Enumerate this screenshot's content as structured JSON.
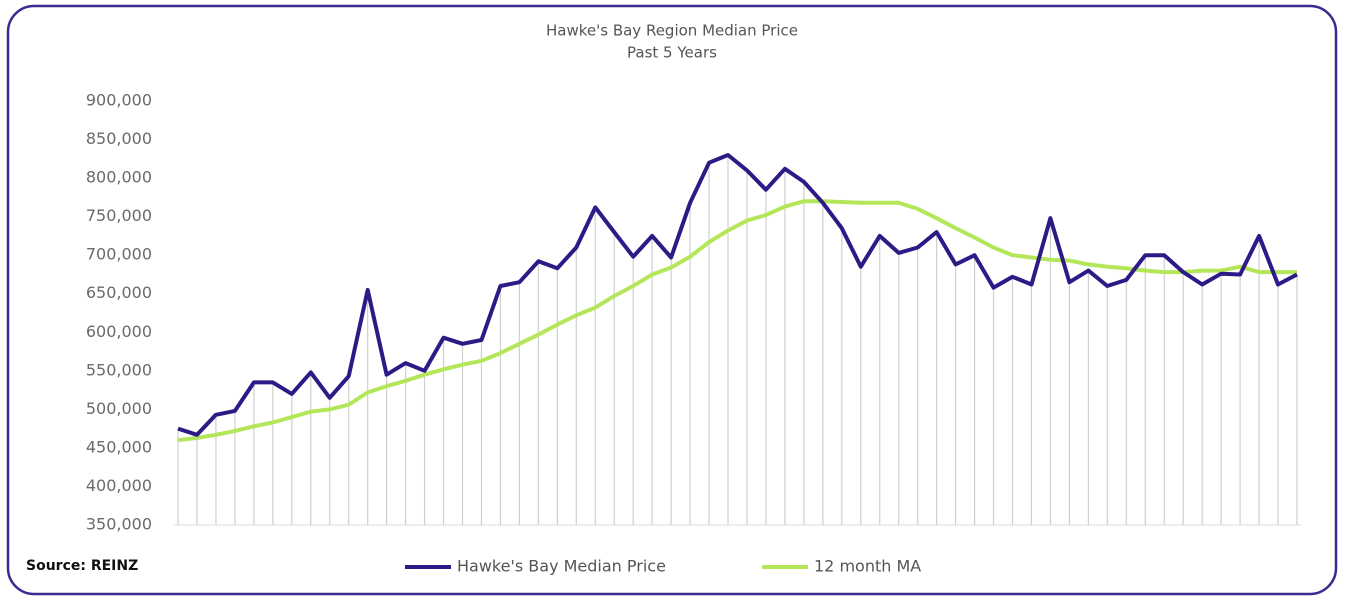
{
  "chart_data": {
    "type": "line",
    "title": "Hawke's Bay Region Median Price",
    "subtitle": "Past 5 Years",
    "source": "Source: REINZ",
    "categories": [
      null,
      null,
      null,
      null,
      null,
      null,
      null,
      null,
      null,
      null,
      null,
      null,
      null,
      null,
      null,
      null,
      null,
      null,
      null,
      null,
      null,
      null,
      null,
      null,
      null,
      null,
      null,
      null,
      null,
      null,
      null,
      null,
      null,
      null,
      null,
      null,
      null,
      null,
      null,
      null,
      null,
      null,
      null,
      null,
      null,
      null,
      null,
      null,
      null,
      null,
      null,
      null,
      null,
      null,
      null,
      null,
      null,
      null,
      null,
      null
    ],
    "series": [
      {
        "name": "Hawke's Bay Median Price",
        "color": "#2e1a87",
        "values": [
          475000,
          467000,
          493000,
          498000,
          535000,
          535000,
          520000,
          548000,
          515000,
          543000,
          655000,
          545000,
          560000,
          550000,
          593000,
          585000,
          590000,
          660000,
          665000,
          692000,
          683000,
          710000,
          762000,
          730000,
          698000,
          725000,
          697000,
          768000,
          820000,
          830000,
          810000,
          785000,
          812000,
          795000,
          768000,
          735000,
          685000,
          725000,
          703000,
          710000,
          730000,
          688000,
          700000,
          658000,
          672000,
          662000,
          748000,
          665000,
          680000,
          660000,
          668000,
          700000,
          700000,
          678000,
          662000,
          676000,
          675000,
          725000,
          662000,
          675000
        ]
      },
      {
        "name": "12 month MA",
        "color": "#b4e65a",
        "values": [
          460000,
          463000,
          467000,
          472000,
          478000,
          483000,
          490000,
          497000,
          500000,
          506000,
          522000,
          530000,
          537000,
          545000,
          552000,
          558000,
          563000,
          573000,
          585000,
          597000,
          610000,
          622000,
          632000,
          647000,
          660000,
          675000,
          684000,
          698000,
          717000,
          732000,
          745000,
          752000,
          763000,
          770000,
          770000,
          769000,
          768000,
          768000,
          768000,
          760000,
          748000,
          735000,
          723000,
          710000,
          700000,
          697000,
          694000,
          693000,
          688000,
          685000,
          683000,
          680000,
          678000,
          678000,
          680000,
          680000,
          685000,
          678000,
          678000,
          678000
        ]
      }
    ],
    "ylim": [
      350000,
      900000
    ],
    "yticks": [
      {
        "value": 350000,
        "label": "350,000"
      },
      {
        "value": 400000,
        "label": "400,000"
      },
      {
        "value": 450000,
        "label": "450,000"
      },
      {
        "value": 500000,
        "label": "500,000"
      },
      {
        "value": 550000,
        "label": "550,000"
      },
      {
        "value": 600000,
        "label": "600,000"
      },
      {
        "value": 650000,
        "label": "650,000"
      },
      {
        "value": 700000,
        "label": "700,000"
      },
      {
        "value": 750000,
        "label": "750,000"
      },
      {
        "value": 800000,
        "label": "800,000"
      },
      {
        "value": 850000,
        "label": "850,000"
      },
      {
        "value": 900000,
        "label": "900,000"
      }
    ],
    "drop_line_color": "#cfcfcf",
    "legend": "bottom"
  }
}
